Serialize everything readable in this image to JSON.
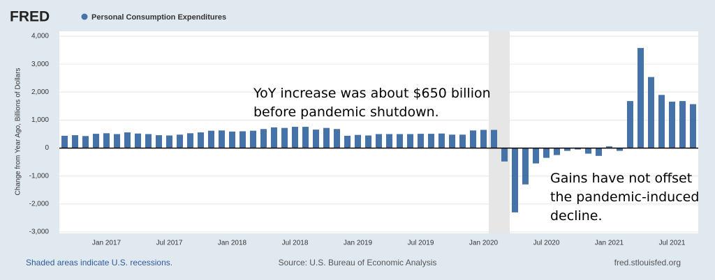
{
  "chart_data": {
    "type": "bar",
    "logo": "FRED",
    "ylabel": "Change from Year Ago, Billions of Dollars",
    "categories": [
      null,
      null,
      null,
      null,
      "Jan 2017",
      null,
      null,
      null,
      null,
      null,
      "Jul 2017",
      null,
      null,
      null,
      null,
      null,
      "Jan 2018",
      null,
      null,
      null,
      null,
      null,
      "Jul 2018",
      null,
      null,
      null,
      null,
      null,
      "Jan 2019",
      null,
      null,
      null,
      null,
      null,
      "Jul 2019",
      null,
      null,
      null,
      null,
      null,
      "Jan 2020",
      null,
      null,
      null,
      null,
      null,
      "Jul 2020",
      null,
      null,
      null,
      null,
      null,
      "Jan 2021",
      null,
      null,
      null,
      null,
      null,
      "Jul 2021",
      null,
      null
    ],
    "series": [
      {
        "name": "Personal Consumption Expenditures",
        "color": "#4572a7",
        "values": [
          440,
          460,
          430,
          510,
          530,
          500,
          560,
          520,
          500,
          460,
          450,
          480,
          530,
          560,
          620,
          630,
          590,
          600,
          620,
          680,
          740,
          720,
          760,
          760,
          660,
          720,
          680,
          440,
          470,
          450,
          500,
          500,
          500,
          500,
          510,
          510,
          520,
          480,
          480,
          630,
          650,
          650,
          -480,
          -2300,
          -1300,
          -550,
          -350,
          -250,
          -100,
          -50,
          -200,
          -280,
          60,
          -100,
          1680,
          3580,
          2540,
          1900,
          1660,
          1680,
          1570
        ]
      }
    ],
    "ylim": [
      -3000,
      4000
    ],
    "yticks": [
      {
        "value": -3000,
        "label": "-3,000"
      },
      {
        "value": -2000,
        "label": "-2,000"
      },
      {
        "value": -1000,
        "label": "-1,000"
      },
      0,
      {
        "value": 1000,
        "label": "1,000"
      },
      {
        "value": 2000,
        "label": "2,000"
      },
      {
        "value": 3000,
        "label": "3,000"
      },
      {
        "value": 4000,
        "label": "4,000"
      }
    ],
    "grid": true,
    "annotations": [
      "YoY increase was about $650 billion",
      "before pandemic shutdown.",
      "Gains have not offset",
      "the pandemic-induced",
      "decline."
    ],
    "footer": {
      "left": "Shaded areas indicate U.S. recessions.",
      "center": "Source: U.S. Bureau of Economic Analysis",
      "right": "fred.stlouisfed.org"
    }
  }
}
